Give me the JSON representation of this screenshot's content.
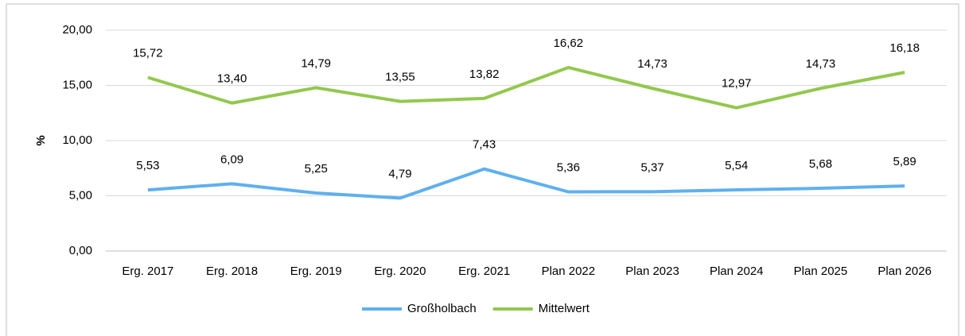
{
  "chart_data": {
    "type": "line",
    "y_label": "%",
    "categories": [
      "Erg. 2017",
      "Erg. 2018",
      "Erg. 2019",
      "Erg. 2020",
      "Erg. 2021",
      "Plan 2022",
      "Plan 2023",
      "Plan 2024",
      "Plan 2025",
      "Plan 2026"
    ],
    "series": [
      {
        "name": "Großholbach",
        "color": "#5fb0ee",
        "values": [
          5.53,
          6.09,
          5.25,
          4.79,
          7.43,
          5.36,
          5.37,
          5.54,
          5.68,
          5.89
        ],
        "value_labels": [
          "5,53",
          "6,09",
          "5,25",
          "4,79",
          "7,43",
          "5,36",
          "5,37",
          "5,54",
          "5,68",
          "5,89"
        ]
      },
      {
        "name": "Mittelwert",
        "color": "#92c84e",
        "values": [
          15.72,
          13.4,
          14.79,
          13.55,
          13.82,
          16.62,
          14.73,
          12.97,
          14.73,
          16.18
        ],
        "value_labels": [
          "15,72",
          "13,40",
          "14,79",
          "13,55",
          "13,82",
          "16,62",
          "14,73",
          "12,97",
          "14,73",
          "16,18"
        ]
      }
    ],
    "ylim": [
      0,
      20
    ],
    "yticks": [
      {
        "value": 0,
        "label": "0,00"
      },
      {
        "value": 5,
        "label": "5,00"
      },
      {
        "value": 10,
        "label": "10,00"
      },
      {
        "value": 15,
        "label": "15,00"
      },
      {
        "value": 20,
        "label": "20,00"
      }
    ],
    "grid": true,
    "legend": "bottom"
  }
}
